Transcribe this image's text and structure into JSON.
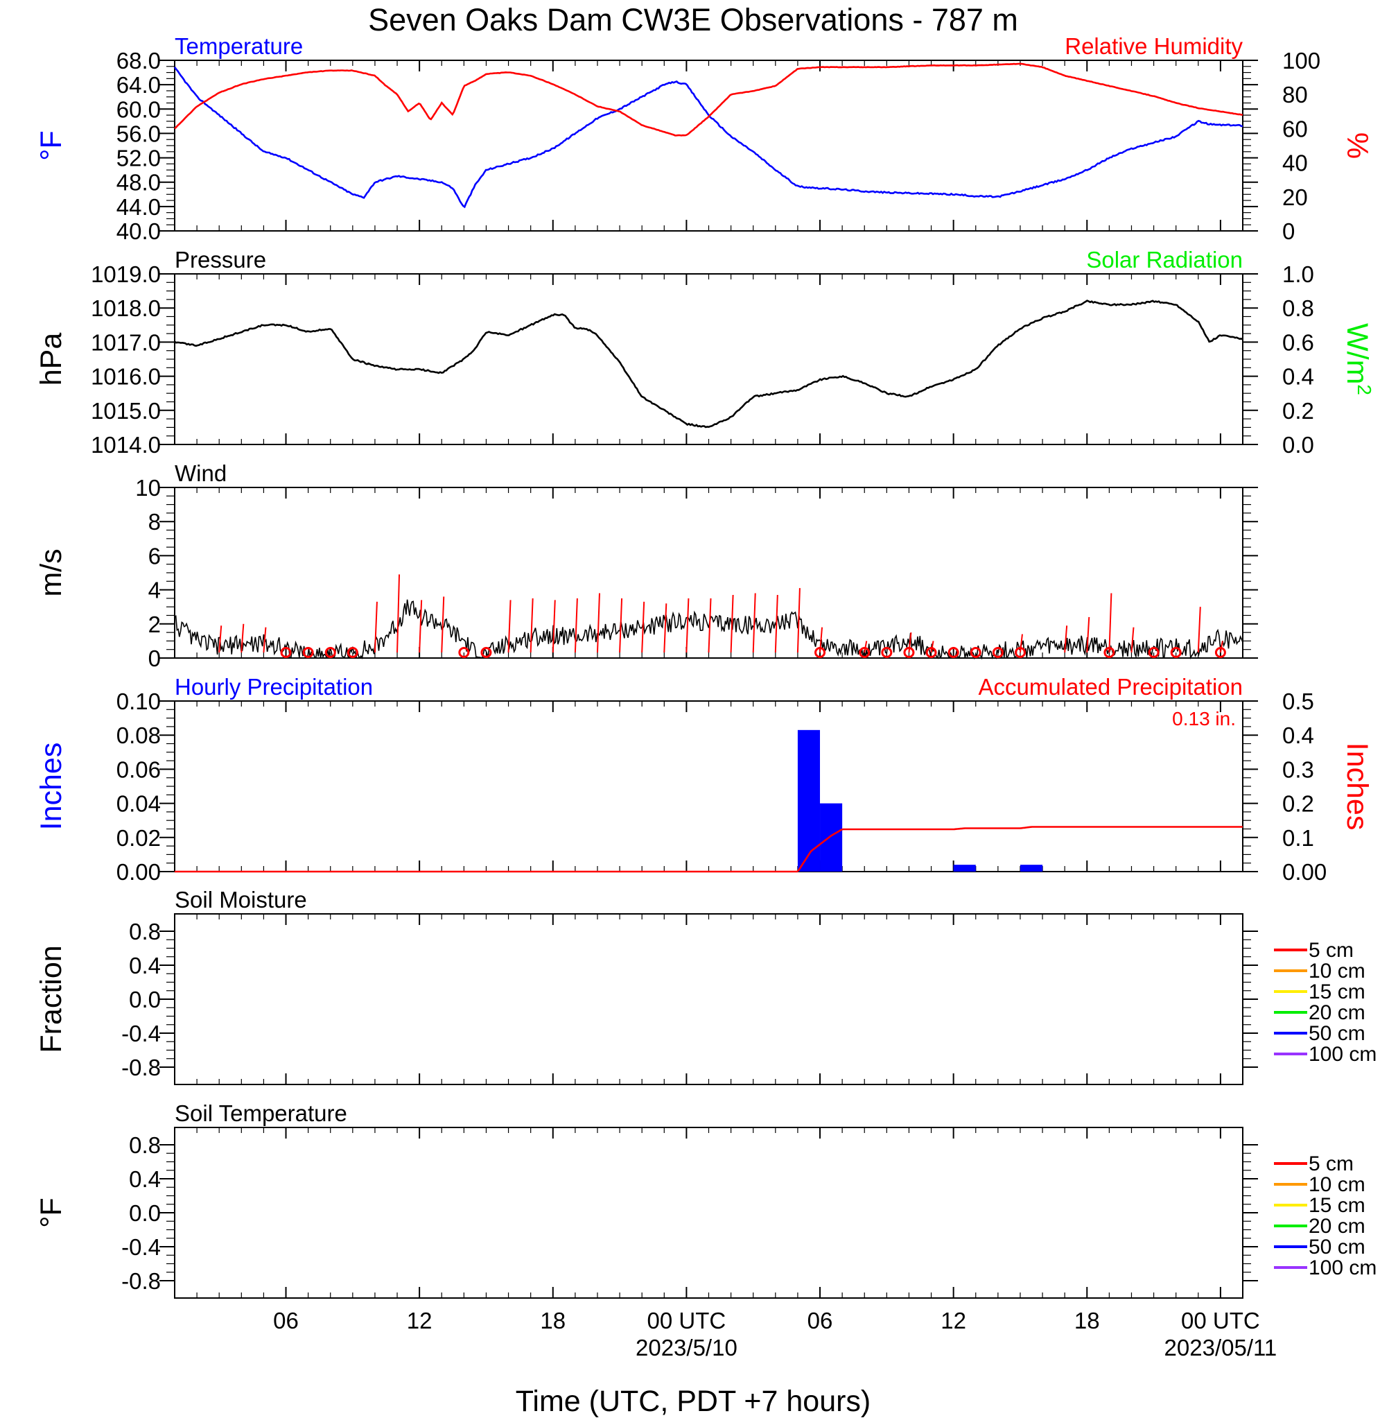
{
  "title": "Seven Oaks Dam CW3E Observations - 787 m",
  "x_axis": {
    "title": "Time (UTC, PDT +7 hours)",
    "range_hours": [
      0,
      48
    ],
    "ticks": [
      {
        "hour": 5,
        "label": "06"
      },
      {
        "hour": 11,
        "label": "12"
      },
      {
        "hour": 17,
        "label": "18"
      },
      {
        "hour": 23,
        "label": "00 UTC",
        "sublabel": "2023/5/10"
      },
      {
        "hour": 29,
        "label": "06"
      },
      {
        "hour": 35,
        "label": "12"
      },
      {
        "hour": 41,
        "label": "18"
      },
      {
        "hour": 47,
        "label": "00 UTC",
        "sublabel": "2023/05/11"
      }
    ]
  },
  "colors": {
    "blue": "#0000ff",
    "red": "#ff0000",
    "green": "#00ee00",
    "black": "#000000"
  },
  "chart_data": [
    {
      "type": "line",
      "left_title": "Temperature",
      "right_title": "Relative Humidity",
      "ylabel_left": "°F",
      "ylabel_right": "%",
      "ylim_left": [
        40,
        68
      ],
      "ylim_right": [
        0,
        100
      ],
      "yticks_left": [
        "40.0",
        "44.0",
        "48.0",
        "52.0",
        "56.0",
        "60.0",
        "64.0",
        "68.0"
      ],
      "yticks_right": [
        "0",
        "20",
        "40",
        "60",
        "80",
        "100"
      ],
      "series": [
        {
          "name": "Temperature",
          "axis": "left",
          "color": "#0000ff",
          "x": [
            0,
            1,
            2,
            3,
            4,
            5,
            6,
            7,
            8,
            8.5,
            9,
            10,
            11,
            12,
            12.5,
            13,
            13.5,
            14,
            15,
            16,
            17,
            18,
            19,
            20,
            21,
            22,
            22.5,
            23,
            24,
            25,
            26,
            27,
            28,
            29,
            30,
            31,
            32,
            33,
            34,
            35,
            36,
            37,
            38,
            39,
            40,
            41,
            42,
            43,
            44,
            45,
            46,
            46.5,
            47,
            48
          ],
          "y": [
            66.8,
            62,
            59,
            56,
            53,
            52,
            50,
            48,
            46,
            45.5,
            48,
            49,
            48.5,
            48,
            47,
            43.8,
            47.5,
            50,
            51,
            52,
            53.5,
            56,
            58.5,
            60,
            62,
            64,
            64.5,
            64,
            59,
            55.5,
            53,
            50,
            47.3,
            47,
            46.8,
            46.5,
            46.3,
            46.2,
            46.1,
            46,
            45.7,
            45.6,
            46.5,
            47.5,
            48.5,
            50,
            52,
            53.5,
            54.5,
            55.5,
            58,
            57.5,
            57.4,
            57.3
          ]
        },
        {
          "name": "Relative Humidity",
          "axis": "right",
          "color": "#ff0000",
          "x": [
            0,
            1,
            2,
            3,
            4,
            5,
            6,
            7,
            8,
            9,
            9.5,
            10,
            10.5,
            11,
            11.5,
            12,
            12.5,
            13,
            13.5,
            14,
            15,
            16,
            17,
            18,
            19,
            20,
            21,
            22,
            22.5,
            23,
            24,
            25,
            26,
            27,
            28,
            29,
            30,
            31,
            32,
            33,
            34,
            35,
            36,
            37,
            38,
            39,
            40,
            41,
            42,
            43,
            44,
            45,
            46,
            47,
            48
          ],
          "y": [
            60,
            73,
            81,
            86,
            89,
            91,
            93,
            94,
            94,
            91,
            85,
            80,
            70,
            75,
            65,
            75,
            68,
            85,
            88,
            92,
            93,
            91,
            86,
            80,
            73,
            70,
            62,
            58,
            56,
            56,
            67,
            80,
            82,
            85,
            95,
            96,
            96,
            96,
            96,
            96.5,
            97,
            97,
            97,
            97.5,
            98,
            96,
            91,
            88,
            85,
            82,
            79,
            75,
            72,
            70,
            68
          ]
        }
      ]
    },
    {
      "type": "line",
      "left_title": "Pressure",
      "right_title": "Solar Radiation",
      "ylabel_left": "hPa",
      "ylabel_right": "W/m",
      "ylabel_right_sup": "2",
      "ylim_left": [
        1014.0,
        1019.0
      ],
      "ylim_right": [
        0.0,
        1.0
      ],
      "yticks_left": [
        "1014.0",
        "1015.0",
        "1016.0",
        "1017.0",
        "1018.0",
        "1019.0"
      ],
      "yticks_right": [
        "0.0",
        "0.2",
        "0.4",
        "0.6",
        "0.8",
        "1.0"
      ],
      "series": [
        {
          "name": "Pressure",
          "axis": "left",
          "color": "#000000",
          "x": [
            0,
            1,
            2,
            3,
            4,
            5,
            6,
            7,
            8,
            9,
            10,
            11,
            12,
            13,
            13.5,
            14,
            15,
            16,
            17,
            17.5,
            18,
            18.5,
            19,
            20,
            21,
            22,
            23,
            24,
            25,
            26,
            27,
            28,
            29,
            30,
            31,
            32,
            33,
            34,
            35,
            36,
            37,
            38,
            39,
            40,
            41,
            42,
            43,
            44,
            45,
            46,
            46.5,
            47,
            48
          ],
          "y": [
            1017.0,
            1016.9,
            1017.1,
            1017.3,
            1017.5,
            1017.5,
            1017.3,
            1017.4,
            1016.5,
            1016.3,
            1016.2,
            1016.2,
            1016.1,
            1016.5,
            1016.8,
            1017.3,
            1017.2,
            1017.5,
            1017.8,
            1017.8,
            1017.4,
            1017.4,
            1017.2,
            1016.4,
            1015.4,
            1015.0,
            1014.6,
            1014.5,
            1014.8,
            1015.4,
            1015.5,
            1015.6,
            1015.9,
            1016.0,
            1015.8,
            1015.5,
            1015.4,
            1015.7,
            1015.9,
            1016.2,
            1016.9,
            1017.4,
            1017.7,
            1017.9,
            1018.2,
            1018.1,
            1018.1,
            1018.2,
            1018.1,
            1017.6,
            1017.0,
            1017.2,
            1017.1
          ]
        }
      ]
    },
    {
      "type": "line",
      "left_title": "Wind",
      "ylabel_left": "m/s",
      "ylim_left": [
        0,
        10
      ],
      "yticks_left": [
        "0",
        "2",
        "4",
        "6",
        "8",
        "10"
      ],
      "series": [
        {
          "name": "Wind",
          "axis": "left",
          "color": "#000000",
          "x": [
            0,
            1,
            2,
            3,
            4,
            5,
            6,
            7,
            8,
            8.5,
            9,
            10,
            10.5,
            11,
            12,
            13,
            13.5,
            14,
            15,
            16,
            17,
            18,
            19,
            20,
            21,
            22,
            23,
            24,
            25,
            26,
            27,
            28,
            29,
            30,
            31,
            32,
            33,
            34,
            35,
            36,
            37,
            38,
            39,
            40,
            41,
            42,
            43,
            44,
            45,
            46,
            47,
            48
          ],
          "y": [
            2.0,
            1.0,
            0.7,
            0.8,
            0.9,
            0.6,
            0.2,
            0.3,
            0.2,
            0.5,
            0.6,
            2.0,
            3.0,
            2.5,
            2.0,
            1.0,
            0.3,
            0.2,
            0.8,
            1.2,
            1.4,
            1.2,
            1.5,
            1.6,
            1.8,
            2.0,
            2.2,
            2.0,
            2.0,
            1.9,
            2.0,
            2.2,
            0.8,
            0.6,
            0.4,
            0.5,
            1.2,
            0.3,
            0.2,
            0.4,
            0.4,
            0.5,
            0.6,
            0.7,
            0.8,
            0.6,
            0.5,
            0.6,
            0.6,
            0.5,
            1.2,
            0.8
          ]
        },
        {
          "name": "Wind Barbs",
          "color": "#ff0000",
          "barb_hours": [
            2,
            3,
            4,
            9,
            10,
            11,
            12,
            13,
            15,
            16,
            17,
            18,
            19,
            20,
            21,
            22,
            23,
            24,
            25,
            26,
            27,
            28,
            29,
            31,
            33,
            34,
            38,
            40,
            41,
            42,
            43,
            46,
            47
          ],
          "barb_speeds": [
            1.9,
            2.0,
            1.8,
            3.3,
            4.9,
            3.4,
            3.6,
            0.0,
            3.4,
            3.5,
            3.4,
            3.5,
            3.8,
            3.5,
            3.3,
            3.2,
            3.5,
            3.5,
            3.7,
            3.8,
            3.7,
            4.1,
            1.8,
            1.0,
            1.5,
            1.0,
            1.4,
            1.9,
            2.4,
            3.8,
            1.8,
            3.0,
            1.0
          ],
          "calm_hours": [
            5,
            6,
            7,
            8,
            13,
            14,
            29,
            31,
            32,
            33,
            34,
            35,
            36,
            37,
            38,
            42,
            44,
            45,
            47
          ]
        }
      ]
    },
    {
      "type": "bar",
      "left_title": "Hourly Precipitation",
      "right_title": "Accumulated Precipitation",
      "annotation": "0.13 in.",
      "ylabel_left": "Inches",
      "ylabel_right": "Inches",
      "ylim_left": [
        0,
        0.1
      ],
      "ylim_right": [
        0,
        0.5
      ],
      "yticks_left": [
        "0.00",
        "0.02",
        "0.04",
        "0.06",
        "0.08",
        "0.10"
      ],
      "yticks_right": [
        "0.00",
        "0.1",
        "0.2",
        "0.3",
        "0.4",
        "0.5"
      ],
      "series": [
        {
          "name": "Hourly Precipitation",
          "axis": "left",
          "color": "#0000ff",
          "bar_start_hours": [
            28,
            29,
            35,
            38
          ],
          "values": [
            0.083,
            0.04,
            0.004,
            0.004
          ]
        },
        {
          "name": "Accumulated Precipitation",
          "axis": "right",
          "color": "#ff0000",
          "x": [
            0,
            28,
            28.2,
            28.6,
            29,
            29.5,
            30,
            35,
            35.5,
            38,
            38.5,
            48
          ],
          "y": [
            0,
            0,
            0.02,
            0.06,
            0.08,
            0.105,
            0.124,
            0.124,
            0.127,
            0.127,
            0.131,
            0.131
          ]
        }
      ]
    },
    {
      "type": "line",
      "left_title": "Soil Moisture",
      "ylabel_left": "Fraction",
      "ylim_left": [
        -1,
        1
      ],
      "yticks_left": [
        "-0.8",
        "-0.4",
        "0.0",
        "0.4",
        "0.8"
      ],
      "legend": [
        {
          "label": "5 cm",
          "color": "#ff0000"
        },
        {
          "label": "10 cm",
          "color": "#ff9900"
        },
        {
          "label": "15 cm",
          "color": "#ffee00"
        },
        {
          "label": "20 cm",
          "color": "#00ee00"
        },
        {
          "label": "50 cm",
          "color": "#0000ff"
        },
        {
          "label": "100 cm",
          "color": "#9933ff"
        }
      ],
      "series": []
    },
    {
      "type": "line",
      "left_title": "Soil Temperature",
      "ylabel_left": "°F",
      "ylim_left": [
        -1,
        1
      ],
      "yticks_left": [
        "-0.8",
        "-0.4",
        "0.0",
        "0.4",
        "0.8"
      ],
      "legend": [
        {
          "label": "5 cm",
          "color": "#ff0000"
        },
        {
          "label": "10 cm",
          "color": "#ff9900"
        },
        {
          "label": "15 cm",
          "color": "#ffee00"
        },
        {
          "label": "20 cm",
          "color": "#00ee00"
        },
        {
          "label": "50 cm",
          "color": "#0000ff"
        },
        {
          "label": "100 cm",
          "color": "#9933ff"
        }
      ],
      "series": []
    }
  ]
}
